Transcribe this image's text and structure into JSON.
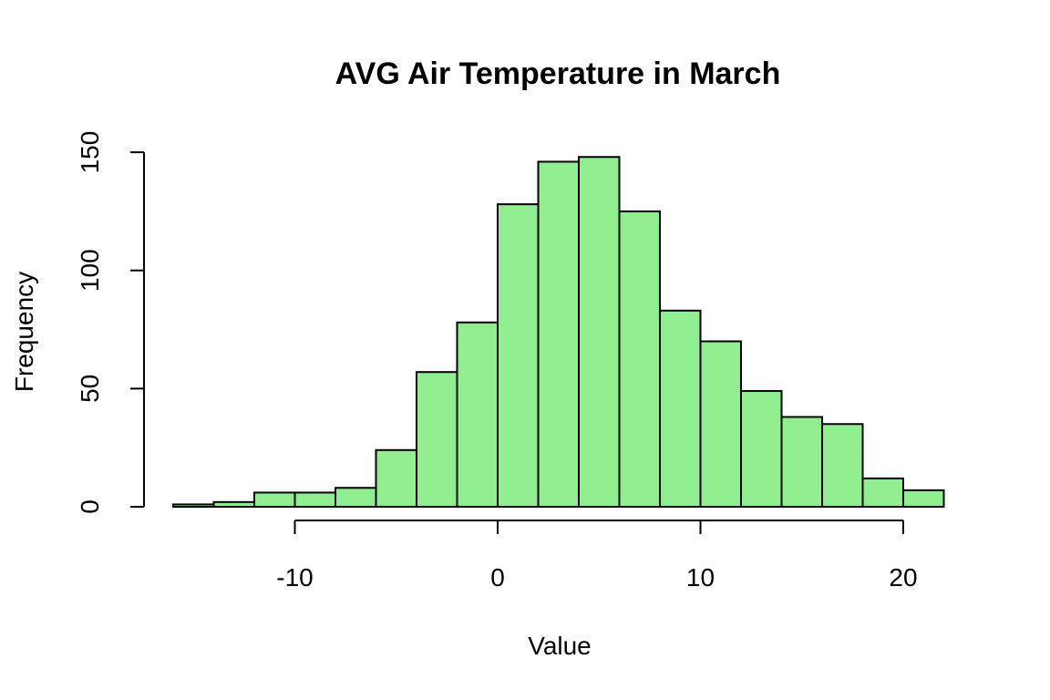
{
  "chart_data": {
    "type": "bar",
    "title": "AVG Air Temperature in March",
    "xlabel": "Value",
    "ylabel": "Frequency",
    "bin_edges": [
      -16,
      -14,
      -12,
      -10,
      -8,
      -6,
      -4,
      -2,
      0,
      2,
      4,
      6,
      8,
      10,
      12,
      14,
      16,
      18,
      20,
      22
    ],
    "values": [
      1,
      2,
      6,
      6,
      8,
      24,
      57,
      78,
      128,
      146,
      148,
      125,
      83,
      70,
      49,
      38,
      35,
      12,
      7
    ],
    "xlim": [
      -16,
      22
    ],
    "ylim": [
      0,
      150
    ],
    "x_ticks": [
      -10,
      0,
      10,
      20
    ],
    "y_ticks": [
      0,
      50,
      100,
      150
    ],
    "x_tick_labels": [
      "-10",
      "0",
      "10",
      "20"
    ],
    "y_tick_labels": [
      "0",
      "50",
      "100",
      "150"
    ],
    "bar_color": "#90ee90",
    "grid": false,
    "legend": "none"
  }
}
